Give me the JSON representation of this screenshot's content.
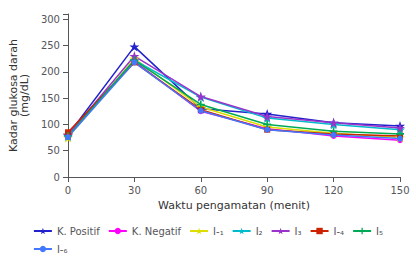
{
  "chart_data": {
    "type": "line",
    "x": [
      0,
      30,
      60,
      90,
      120,
      150
    ],
    "series": [
      {
        "name": "K. Positif",
        "color": "#2222CC",
        "marker": "star",
        "values": [
          80,
          248,
          130,
          120,
          103,
          97
        ]
      },
      {
        "name": "K. Negatif",
        "color": "#FF00FF",
        "marker": "circle",
        "values": [
          83,
          220,
          125,
          92,
          78,
          70
        ]
      },
      {
        "name": "I-₁",
        "color": "#DDDD00",
        "marker": "star",
        "values": [
          75,
          225,
          133,
          95,
          83,
          75
        ]
      },
      {
        "name": "I₂",
        "color": "#00BBCC",
        "marker": "star",
        "values": [
          78,
          222,
          152,
          112,
          100,
          90
        ]
      },
      {
        "name": "I₃",
        "color": "#9933CC",
        "marker": "star",
        "values": [
          80,
          230,
          153,
          115,
          103,
          93
        ]
      },
      {
        "name": "I-₄",
        "color": "#CC2200",
        "marker": "square",
        "values": [
          85,
          218,
          128,
          90,
          82,
          78
        ]
      },
      {
        "name": "I₅",
        "color": "#00AA55",
        "marker": "plus",
        "values": [
          78,
          222,
          138,
          100,
          87,
          82
        ]
      },
      {
        "name": "I-₆",
        "color": "#4477FF",
        "marker": "circle",
        "values": [
          76,
          218,
          126,
          90,
          80,
          73
        ]
      }
    ],
    "xlabel": "Waktu pengamatan (menit)",
    "ylabel": "Kadar glukosa darah\n(mg/dL)",
    "xlim": [
      0,
      150
    ],
    "xticks": [
      0,
      30,
      60,
      90,
      120,
      150
    ],
    "ylim": [
      0,
      310
    ],
    "yticks": [
      0,
      50,
      100,
      150,
      200,
      250,
      300
    ],
    "grid": false,
    "legend": "bottom"
  }
}
